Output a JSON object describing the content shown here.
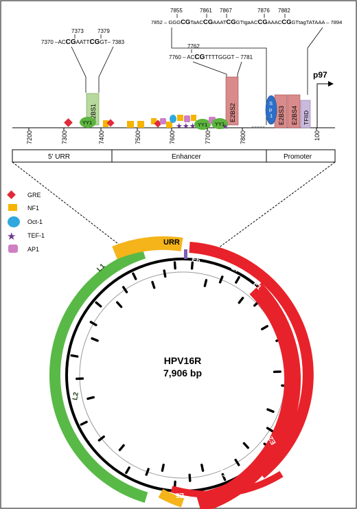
{
  "urr_region": {
    "axis_ticks": [
      "7200",
      "7300",
      "7400",
      "7500",
      "7600",
      "7700",
      "7800",
      "100"
    ],
    "segments": [
      "5' URR",
      "Enhancer",
      "Promoter"
    ],
    "promoter_label": "p97",
    "boxes": [
      "E2BS1",
      "E2BS2",
      "E2BS3",
      "E2BS4",
      "TFIID"
    ],
    "sp1_label": "S\np\n1",
    "yy1_label": "YY1",
    "seq_e2bs1": {
      "left": "7370 –AC",
      "cg1": "CG",
      "mid": "AATT",
      "cg2": "CG",
      "right": "GT– 7383",
      "pos1": "7373",
      "pos2": "7379"
    },
    "seq_e2bs2": {
      "left": "7760 – AC",
      "cg1": "CG",
      "right": "TTTTGGGT – 7781",
      "pos1": "7762"
    },
    "seq_e2bs34": {
      "left": "7852 – GGG",
      "cg1": "CG",
      "s1": "TaAC",
      "cg2": "CG",
      "s2": "AAAT",
      "cg3": "CG",
      "s3": "GTtgaAC",
      "cg4": "CG",
      "s4": "AAAC",
      "cg5": "CG",
      "right": "GTtagTATAAA – 7894",
      "pos": [
        "7855",
        "7861",
        "7867",
        "7876",
        "7882"
      ]
    }
  },
  "legend": [
    {
      "label": "GRE",
      "shape": "diamond",
      "color": "#e02a3a"
    },
    {
      "label": "NF1",
      "shape": "square",
      "color": "#f5b400"
    },
    {
      "label": "Oct-1",
      "shape": "oval",
      "color": "#2fa8e0"
    },
    {
      "label": "TEF-1",
      "shape": "star",
      "color": "#6b3a8c"
    },
    {
      "label": "AP1",
      "shape": "rounded",
      "color": "#cf7fc4"
    }
  ],
  "genome": {
    "title": "HPV16R",
    "size": "7,906 bp",
    "genes": [
      "URR",
      "L1",
      "L2",
      "E6",
      "E7",
      "E1",
      "E2",
      "E4",
      "E5"
    ]
  },
  "colors": {
    "early": "#e8222a",
    "late": "#59b947",
    "urr": "#f4b41a",
    "e2bs": "#d98b8b",
    "tfiid": "#c9b9dc",
    "sp1": "#2c6fc7",
    "yy1": "#5cb43f"
  }
}
